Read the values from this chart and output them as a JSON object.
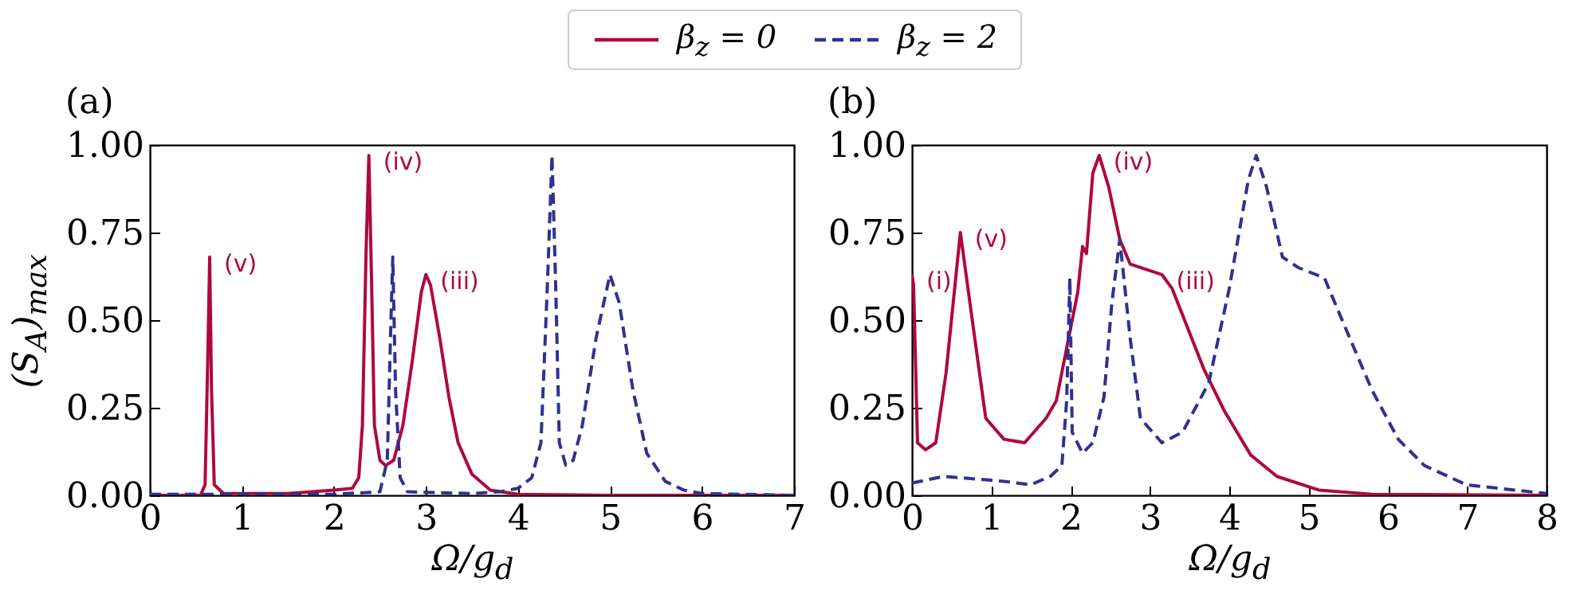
{
  "chart_data": [
    {
      "type": "line",
      "title": "(a)",
      "xlabel": "Ω/g$_{d}$",
      "ylabel": "(S$_{A}$)$_{max}$",
      "legend": "top",
      "xlim": [
        0,
        7
      ],
      "xticks": [
        0,
        1,
        2,
        3,
        4,
        5,
        6,
        7
      ],
      "ylim": [
        0,
        1
      ],
      "yticks": [
        {
          "value": 0,
          "label": "0.00"
        },
        {
          "value": 0.25,
          "label": "0.25"
        },
        {
          "value": 0.5,
          "label": "0.50"
        },
        {
          "value": 0.75,
          "label": "0.75"
        },
        {
          "value": 1,
          "label": "1.00"
        }
      ],
      "annotations": [
        {
          "text": "(v)",
          "x": 0.65,
          "y": 0.68
        },
        {
          "text": "(iv)",
          "x": 2.38,
          "y": 0.97
        },
        {
          "text": "(iii)",
          "x": 3.0,
          "y": 0.63
        }
      ],
      "series": [
        {
          "name": "β$_{z}$ = 0",
          "color": "#b0083c",
          "line_style": "solid",
          "x": [
            0,
            0.55,
            0.6,
            0.63,
            0.65,
            0.67,
            0.7,
            0.8,
            1.5,
            2.0,
            2.2,
            2.27,
            2.31,
            2.35,
            2.38,
            2.41,
            2.44,
            2.5,
            2.56,
            2.65,
            2.75,
            2.85,
            2.95,
            3.0,
            3.05,
            3.15,
            3.25,
            3.35,
            3.5,
            3.7,
            4.0,
            5.0,
            7.0
          ],
          "values": [
            0,
            0,
            0.03,
            0.4,
            0.68,
            0.3,
            0.03,
            0.005,
            0.005,
            0.015,
            0.02,
            0.05,
            0.2,
            0.7,
            0.97,
            0.6,
            0.2,
            0.1,
            0.085,
            0.1,
            0.2,
            0.38,
            0.58,
            0.63,
            0.6,
            0.45,
            0.28,
            0.15,
            0.06,
            0.015,
            0.003,
            0,
            0
          ]
        },
        {
          "name": "β$_{z}$ = 2",
          "color": "#2e3192",
          "line_style": "dashed",
          "x": [
            0,
            2.0,
            2.5,
            2.58,
            2.62,
            2.64,
            2.67,
            2.72,
            2.8,
            3.5,
            3.8,
            4.0,
            4.15,
            4.25,
            4.32,
            4.37,
            4.41,
            4.45,
            4.52,
            4.6,
            4.7,
            4.85,
            5.0,
            5.1,
            5.25,
            5.4,
            5.6,
            5.8,
            6.0,
            7.0
          ],
          "values": [
            0.003,
            0.003,
            0.01,
            0.1,
            0.5,
            0.68,
            0.3,
            0.05,
            0.01,
            0.005,
            0.01,
            0.02,
            0.05,
            0.15,
            0.6,
            0.97,
            0.6,
            0.15,
            0.086,
            0.1,
            0.2,
            0.45,
            0.63,
            0.55,
            0.3,
            0.12,
            0.04,
            0.015,
            0.005,
            0
          ]
        }
      ]
    },
    {
      "type": "line",
      "title": "(b)",
      "xlabel": "Ω/g$_{d}$",
      "legend": "top",
      "xlim": [
        0,
        8
      ],
      "xticks": [
        0,
        1,
        2,
        3,
        4,
        5,
        6,
        7,
        8
      ],
      "ylim": [
        0,
        1
      ],
      "yticks": [
        {
          "value": 0,
          "label": "0.00"
        },
        {
          "value": 0.25,
          "label": "0.25"
        },
        {
          "value": 0.5,
          "label": "0.50"
        },
        {
          "value": 0.75,
          "label": "0.75"
        },
        {
          "value": 1,
          "label": "1.00"
        }
      ],
      "annotations": [
        {
          "text": "(i)",
          "x": 0,
          "y": 0.63
        },
        {
          "text": "(v)",
          "x": 0.61,
          "y": 0.75
        },
        {
          "text": "(iv)",
          "x": 2.36,
          "y": 0.97
        },
        {
          "text": "(iii)",
          "x": 3.15,
          "y": 0.63
        }
      ],
      "series": [
        {
          "name": "β$_{z}$ = 0",
          "color": "#b0083c",
          "line_style": "solid",
          "x": [
            0,
            0.02,
            0.07,
            0.17,
            0.3,
            0.43,
            0.61,
            0.76,
            0.93,
            1.16,
            1.42,
            1.69,
            1.82,
            1.95,
            2.09,
            2.15,
            2.2,
            2.28,
            2.36,
            2.48,
            2.62,
            2.75,
            3.15,
            3.28,
            3.68,
            3.94,
            4.27,
            4.6,
            5.13,
            5.8,
            8.0
          ],
          "values": [
            0.63,
            0.6,
            0.15,
            0.13,
            0.15,
            0.35,
            0.75,
            0.5,
            0.22,
            0.16,
            0.15,
            0.22,
            0.27,
            0.42,
            0.58,
            0.71,
            0.69,
            0.92,
            0.97,
            0.88,
            0.73,
            0.66,
            0.63,
            0.59,
            0.36,
            0.24,
            0.115,
            0.054,
            0.015,
            0.003,
            0
          ]
        },
        {
          "name": "β$_{z}$ = 2",
          "color": "#2e3192",
          "line_style": "dashed",
          "x": [
            0,
            0.4,
            1.16,
            1.5,
            1.75,
            1.89,
            1.95,
            1.99,
            2.02,
            2.15,
            2.28,
            2.42,
            2.52,
            2.62,
            2.75,
            2.88,
            3.15,
            3.41,
            3.74,
            4.0,
            4.24,
            4.34,
            4.47,
            4.67,
            4.87,
            5.2,
            5.46,
            5.8,
            6.13,
            6.46,
            6.99,
            8.0
          ],
          "values": [
            0.035,
            0.054,
            0.04,
            0.03,
            0.055,
            0.085,
            0.27,
            0.62,
            0.18,
            0.12,
            0.15,
            0.28,
            0.55,
            0.73,
            0.45,
            0.22,
            0.15,
            0.18,
            0.32,
            0.59,
            0.9,
            0.97,
            0.88,
            0.68,
            0.65,
            0.62,
            0.48,
            0.3,
            0.16,
            0.085,
            0.03,
            0.005
          ]
        }
      ]
    }
  ]
}
